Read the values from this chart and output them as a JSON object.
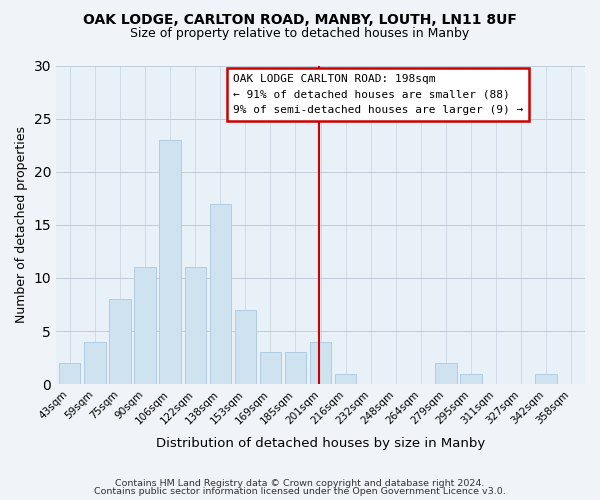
{
  "title": "OAK LODGE, CARLTON ROAD, MANBY, LOUTH, LN11 8UF",
  "subtitle": "Size of property relative to detached houses in Manby",
  "xlabel": "Distribution of detached houses by size in Manby",
  "ylabel": "Number of detached properties",
  "footer_line1": "Contains HM Land Registry data © Crown copyright and database right 2024.",
  "footer_line2": "Contains public sector information licensed under the Open Government Licence v3.0.",
  "bar_color": "#cfe2f0",
  "bar_edge_color": "#aac8e0",
  "bin_labels": [
    "43sqm",
    "59sqm",
    "75sqm",
    "90sqm",
    "106sqm",
    "122sqm",
    "138sqm",
    "153sqm",
    "169sqm",
    "185sqm",
    "201sqm",
    "216sqm",
    "232sqm",
    "248sqm",
    "264sqm",
    "279sqm",
    "295sqm",
    "311sqm",
    "327sqm",
    "342sqm",
    "358sqm"
  ],
  "bar_heights": [
    2,
    4,
    8,
    11,
    23,
    11,
    17,
    7,
    3,
    3,
    4,
    1,
    0,
    0,
    0,
    2,
    1,
    0,
    0,
    1,
    0
  ],
  "ylim": [
    0,
    30
  ],
  "yticks": [
    0,
    5,
    10,
    15,
    20,
    25,
    30
  ],
  "property_line_index": 10,
  "property_line_label": "OAK LODGE CARLTON ROAD: 198sqm",
  "annotation_line1": "← 91% of detached houses are smaller (88)",
  "annotation_line2": "9% of semi-detached houses are larger (9) →",
  "annotation_box_color": "#ffffff",
  "annotation_box_edge": "#cc0000",
  "vline_color": "#cc0000",
  "background_color": "#f0f4f8",
  "plot_bg_color": "#e8f0f8",
  "grid_color": "#c0ccd8"
}
